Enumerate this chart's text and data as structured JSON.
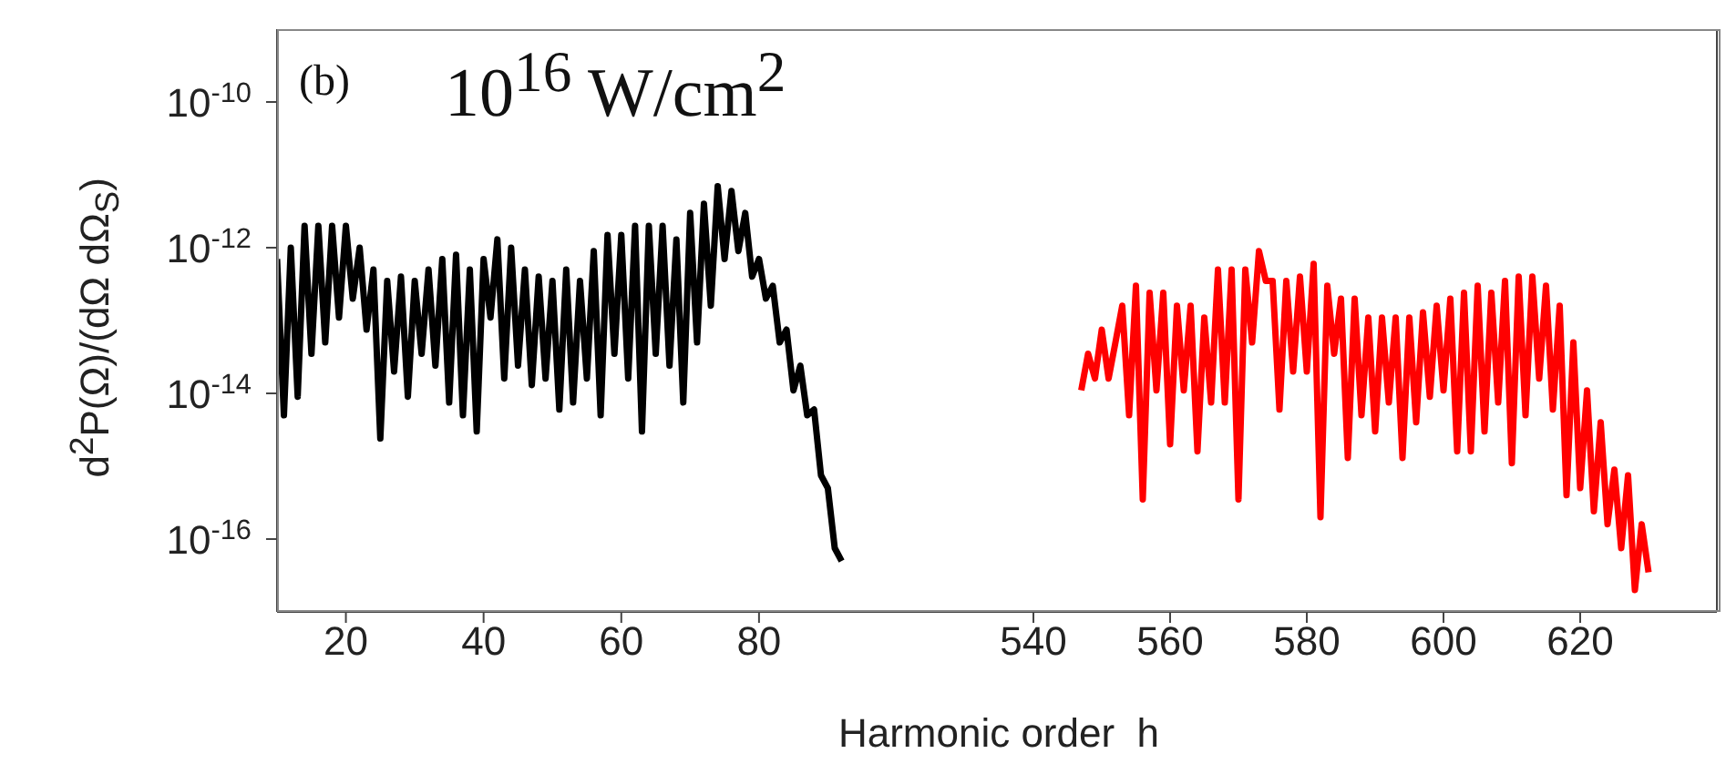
{
  "chart_data": [
    {
      "type": "line",
      "xlabel": "Harmonic order  h",
      "ylabel": "d$^{2}$P(Ω)/(dΩ dΩ$_{S}$)",
      "annotations": [
        "(b)",
        "10$^{16}$ W/cm$^{2}$"
      ],
      "xlim": [
        10,
        100
      ],
      "xticks": [
        20,
        40,
        60,
        80
      ],
      "ylim": [
        1e-17,
        1e-09
      ],
      "yticks": [
        {
          "value": 1e-10,
          "label": "10$^{-10}$"
        },
        {
          "value": 1e-12,
          "label": "10$^{-12}$"
        },
        {
          "value": 1e-14,
          "label": "10$^{-14}$"
        },
        {
          "value": 1e-16,
          "label": "10$^{-16}$"
        }
      ],
      "log": "y",
      "marker": "none",
      "series": [
        {
          "color": "#000000",
          "x": [
            10,
            11,
            12,
            13,
            14,
            15,
            16,
            17,
            18,
            19,
            20,
            21,
            22,
            23,
            24,
            25,
            26,
            27,
            28,
            29,
            30,
            31,
            32,
            33,
            34,
            35,
            36,
            37,
            38,
            39,
            40,
            41,
            42,
            43,
            44,
            45,
            46,
            47,
            48,
            49,
            50,
            51,
            52,
            53,
            54,
            55,
            56,
            57,
            58,
            59,
            60,
            61,
            62,
            63,
            64,
            65,
            66,
            67,
            68,
            69,
            70,
            71,
            72,
            73,
            74,
            75,
            76,
            77,
            78,
            79,
            80,
            81,
            82,
            83,
            84,
            85,
            86,
            87,
            88,
            89,
            90,
            91,
            92
          ],
          "values": [
            7e-13,
            5e-15,
            1e-12,
            9e-15,
            2e-12,
            3.5e-14,
            2e-12,
            5e-14,
            2e-12,
            1.1e-13,
            2e-12,
            2e-13,
            1e-12,
            7.5e-14,
            5e-13,
            2.4e-15,
            3.5e-13,
            2e-14,
            4e-13,
            9e-15,
            3.5e-13,
            3.5e-14,
            5e-13,
            2.4e-14,
            7e-13,
            7.5e-15,
            8e-13,
            5e-15,
            5e-13,
            3e-15,
            7e-13,
            1.1e-13,
            1.3e-12,
            1.6e-14,
            1e-12,
            2.4e-14,
            5e-13,
            1.3e-14,
            4e-13,
            1.6e-14,
            3.5e-13,
            6e-15,
            5e-13,
            7.5e-15,
            3.5e-13,
            1.6e-14,
            9e-13,
            5e-15,
            1.5e-12,
            3.5e-14,
            1.5e-12,
            1.6e-14,
            2e-12,
            3e-15,
            2e-12,
            3.5e-14,
            2e-12,
            2.4e-14,
            1.3e-12,
            7.5e-15,
            3e-12,
            5e-14,
            4e-12,
            1.6e-13,
            7e-12,
            7e-13,
            6e-12,
            9e-13,
            3e-12,
            4e-13,
            7e-13,
            2e-13,
            3e-13,
            5e-14,
            7.5e-14,
            1.1e-14,
            2.4e-14,
            5e-15,
            6e-15,
            7.5e-16,
            5e-16,
            7.5e-17,
            5e-17
          ]
        }
      ]
    },
    {
      "type": "line",
      "xlim": [
        520,
        640
      ],
      "xticks": [
        540,
        560,
        580,
        600,
        620
      ],
      "ylim": [
        1e-17,
        1e-09
      ],
      "log": "y",
      "marker": "none",
      "tick_labels": "x",
      "series": [
        {
          "color": "#ff0000",
          "x": [
            547,
            548,
            549,
            550,
            551,
            552,
            553,
            554,
            555,
            556,
            557,
            558,
            559,
            560,
            561,
            562,
            563,
            564,
            565,
            566,
            567,
            568,
            569,
            570,
            571,
            572,
            573,
            574,
            575,
            576,
            577,
            578,
            579,
            580,
            581,
            582,
            583,
            584,
            585,
            586,
            587,
            588,
            589,
            590,
            591,
            592,
            593,
            594,
            595,
            596,
            597,
            598,
            599,
            600,
            601,
            602,
            603,
            604,
            605,
            606,
            607,
            608,
            609,
            610,
            611,
            612,
            613,
            614,
            615,
            616,
            617,
            618,
            619,
            620,
            621,
            622,
            623,
            624,
            625,
            626,
            627,
            628,
            629,
            630
          ],
          "values": [
            1.1e-14,
            3.5e-14,
            1.6e-14,
            7.5e-14,
            1.6e-14,
            5e-14,
            1.6e-13,
            5e-15,
            3e-13,
            3.5e-16,
            2.4e-13,
            1.1e-14,
            2.4e-13,
            2e-15,
            1.6e-13,
            1.1e-14,
            1.6e-13,
            1.6e-15,
            1.1e-13,
            7.5e-15,
            5e-13,
            7.5e-15,
            5e-13,
            3.5e-16,
            5e-13,
            5e-14,
            9e-13,
            3.5e-13,
            3.5e-13,
            6e-15,
            3.5e-13,
            2e-14,
            4e-13,
            2e-14,
            6e-13,
            2e-16,
            3e-13,
            3.5e-14,
            2e-13,
            1.3e-15,
            2e-13,
            5e-15,
            1.1e-13,
            3e-15,
            1.1e-13,
            7.5e-15,
            1.1e-13,
            1.3e-15,
            1.1e-13,
            4e-15,
            1.3e-13,
            9e-15,
            1.6e-13,
            1.1e-14,
            2e-13,
            1.6e-15,
            2.4e-13,
            1.6e-15,
            3e-13,
            3e-15,
            2.4e-13,
            7.5e-15,
            3.5e-13,
            1.1e-15,
            4e-13,
            5e-15,
            4e-13,
            1.6e-14,
            3e-13,
            6e-15,
            1.6e-13,
            4e-16,
            5e-14,
            5e-16,
            1.1e-14,
            2.4e-16,
            4e-15,
            1.6e-16,
            9e-16,
            7.5e-17,
            7.5e-16,
            2e-17,
            1.6e-16,
            3.5e-17
          ]
        }
      ]
    }
  ]
}
